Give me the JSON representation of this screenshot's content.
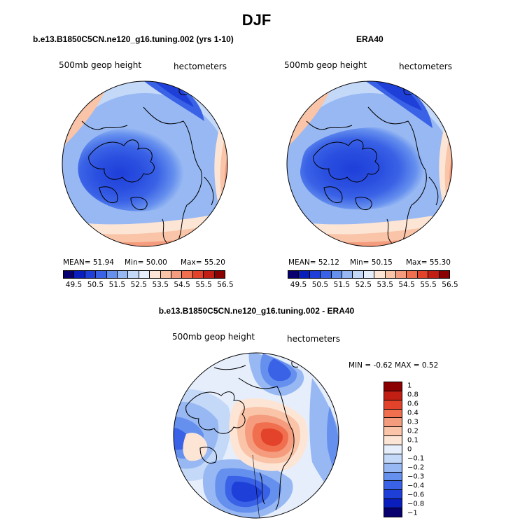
{
  "title": "DJF",
  "panels": {
    "model": {
      "title": "b.e13.B1850C5CN.ne120_g16.tuning.002 (yrs 1-10)",
      "left_label": "500mb geop height",
      "right_label": "hectometers",
      "stats_mean": "MEAN=  51.94",
      "stats_min": "Min=  50.00",
      "stats_max": "Max=  55.20"
    },
    "obs": {
      "title": "ERA40",
      "left_label": "500mb geop height",
      "right_label": "hectometers",
      "stats_mean": "MEAN=  52.12",
      "stats_min": "Min=  50.15",
      "stats_max": "Max=  55.30"
    },
    "diff": {
      "title": "b.e13.B1850C5CN.ne120_g16.tuning.002 - ERA40",
      "left_label": "500mb geop height",
      "right_label": "hectometers",
      "minmax": "MIN =   -0.62  MAX =    0.52"
    }
  },
  "colors": {
    "abs_scale": [
      "#08006e",
      "#0a1dbd",
      "#1f3fd9",
      "#3a62e6",
      "#6690ee",
      "#97b8f3",
      "#c4d8f8",
      "#e6eefb",
      "#fde5d6",
      "#f9c4a8",
      "#f49c7d",
      "#ef6f4f",
      "#e3432b",
      "#c21f14",
      "#8b0000"
    ],
    "diff_scale": [
      "#8b0000",
      "#c21f14",
      "#e3432b",
      "#ef6f4f",
      "#f49c7d",
      "#f9c4a8",
      "#fde5d6",
      "#e6eefb",
      "#c4d8f8",
      "#97b8f3",
      "#6690ee",
      "#3a62e6",
      "#1f3fd9",
      "#0a1dbd",
      "#08006e"
    ]
  },
  "chart_data": [
    {
      "type": "heatmap",
      "projection": "polar stereographic (north pole)",
      "title": "b.e13.B1850C5CN.ne120_g16.tuning.002 (yrs 1-10)",
      "variable": "500mb geop height",
      "units": "hectometers",
      "mean": 51.94,
      "min": 50.0,
      "max": 55.2,
      "colorbar_ticks": [
        49.5,
        50.5,
        51.5,
        52.5,
        53.5,
        54.5,
        55.5,
        56.5
      ],
      "colorbar_levels": [
        49.0,
        49.5,
        50.0,
        50.5,
        51.0,
        51.5,
        52.0,
        52.5,
        53.0,
        53.5,
        54.0,
        54.5,
        55.0,
        55.5,
        56.0,
        56.5
      ]
    },
    {
      "type": "heatmap",
      "projection": "polar stereographic (north pole)",
      "title": "ERA40",
      "variable": "500mb geop height",
      "units": "hectometers",
      "mean": 52.12,
      "min": 50.15,
      "max": 55.3,
      "colorbar_ticks": [
        49.5,
        50.5,
        51.5,
        52.5,
        53.5,
        54.5,
        55.5,
        56.5
      ],
      "colorbar_levels": [
        49.0,
        49.5,
        50.0,
        50.5,
        51.0,
        51.5,
        52.0,
        52.5,
        53.0,
        53.5,
        54.0,
        54.5,
        55.0,
        55.5,
        56.0,
        56.5
      ]
    },
    {
      "type": "heatmap",
      "projection": "polar stereographic (north pole)",
      "title": "b.e13.B1850C5CN.ne120_g16.tuning.002 - ERA40",
      "variable": "500mb geop height",
      "units": "hectometers",
      "min": -0.62,
      "max": 0.52,
      "colorbar_ticks": [
        "1",
        "0.8",
        "0.6",
        "0.4",
        "0.3",
        "0.2",
        "0.1",
        "0",
        "−0.1",
        "−0.2",
        "−0.3",
        "−0.4",
        "−0.6",
        "−0.8",
        "−1"
      ]
    }
  ]
}
